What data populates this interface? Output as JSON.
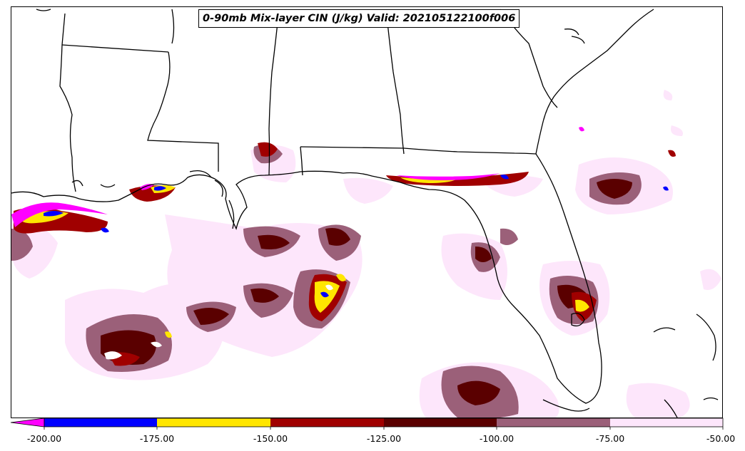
{
  "title": "0-90mb Mix-layer CIN (J/kg) Valid: 202105122100f006",
  "colorbar": {
    "ticks": [
      "-200.00",
      "-175.00",
      "-150.00",
      "-125.00",
      "-100.00",
      "-75.00",
      "-50.00"
    ],
    "levels": [
      {
        "range": "< -200",
        "color": "#ff00ff"
      },
      {
        "range": "-200 to -175",
        "color": "#0000ff"
      },
      {
        "range": "-175 to -150",
        "color": "#ffe600"
      },
      {
        "range": "-150 to -125",
        "color": "#a00000"
      },
      {
        "range": "-125 to -100",
        "color": "#5a0000"
      },
      {
        "range": "-100 to -75",
        "color": "#9b6079"
      },
      {
        "range": "-75 to -50",
        "color": "#fde6fb"
      }
    ]
  },
  "colors": {
    "extreme": "#ff00ff",
    "blue": "#0000ff",
    "yellow": "#ffe600",
    "red": "#a00000",
    "darkred": "#5a0000",
    "mauve": "#9b6079",
    "pink": "#fde6fb"
  }
}
